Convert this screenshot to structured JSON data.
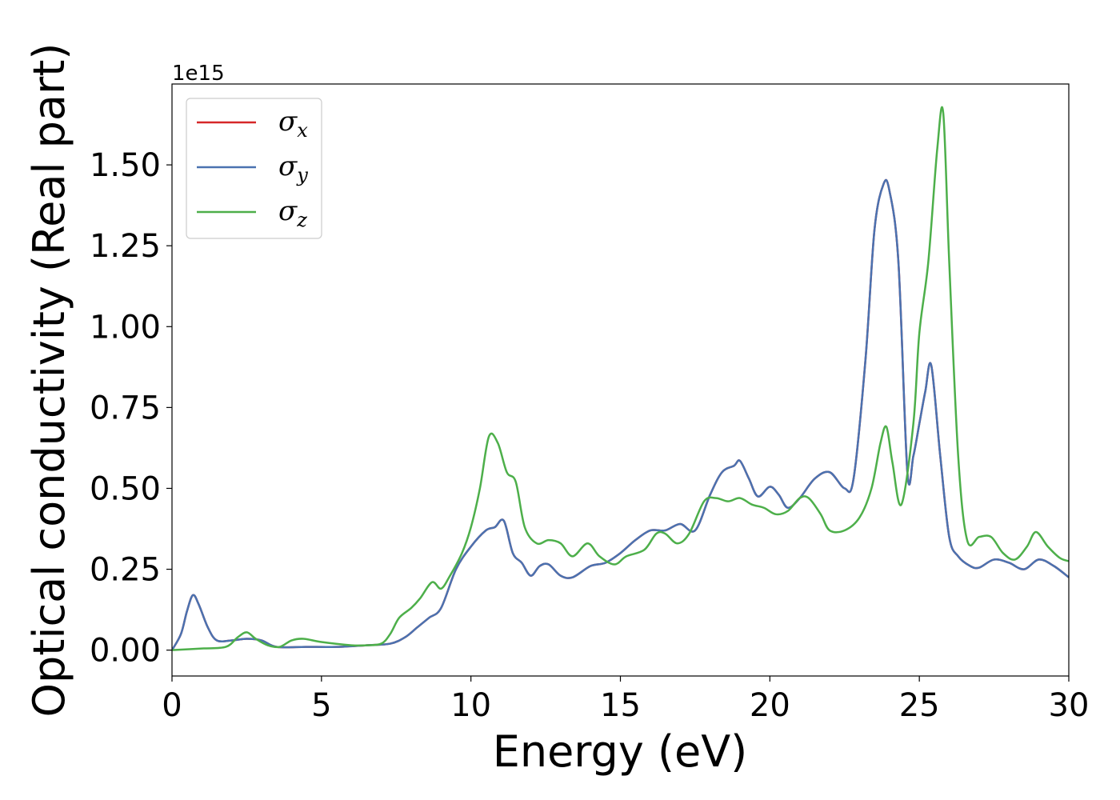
{
  "chart_data": {
    "type": "line",
    "xlabel": "Energy (eV)",
    "ylabel": "Optical conductivity (Real part)",
    "y_offset_text": "1e15",
    "xlim": [
      0,
      30
    ],
    "ylim": [
      -0.08,
      1.75
    ],
    "x_ticks": [
      0,
      5,
      10,
      15,
      20,
      25,
      30
    ],
    "x_tick_labels": [
      "0",
      "5",
      "10",
      "15",
      "20",
      "25",
      "30"
    ],
    "y_ticks": [
      0.0,
      0.25,
      0.5,
      0.75,
      1.0,
      1.25,
      1.5
    ],
    "y_tick_labels": [
      "0.00",
      "0.25",
      "0.50",
      "0.75",
      "1.00",
      "1.25",
      "1.50"
    ],
    "grid": false,
    "legend_position": "top-left",
    "series": [
      {
        "name": "σx",
        "legend_base": "σ",
        "legend_sub": "x",
        "color": "#d62728",
        "x": [
          0,
          0.3,
          0.5,
          0.7,
          0.9,
          1.2,
          1.5,
          2.0,
          2.5,
          3.0,
          3.5,
          4.5,
          5.5,
          6.5,
          7.3,
          7.8,
          8.2,
          8.6,
          9.0,
          9.5,
          10.0,
          10.5,
          10.8,
          11.1,
          11.4,
          11.7,
          12.0,
          12.3,
          12.6,
          13.0,
          13.4,
          14.0,
          14.5,
          15.0,
          15.5,
          16.0,
          16.5,
          17.0,
          17.5,
          18.0,
          18.4,
          18.8,
          19.0,
          19.3,
          19.6,
          20.0,
          20.3,
          20.6,
          21.0,
          21.5,
          22.0,
          22.5,
          22.8,
          23.2,
          23.5,
          23.8,
          24.0,
          24.3,
          24.6,
          24.8,
          25.0,
          25.2,
          25.4,
          25.7,
          26.0,
          26.3,
          26.7,
          27.0,
          27.5,
          28.0,
          28.5,
          29.0,
          29.5,
          30.0
        ],
        "y": [
          0.0,
          0.05,
          0.12,
          0.17,
          0.14,
          0.07,
          0.03,
          0.03,
          0.035,
          0.03,
          0.01,
          0.01,
          0.01,
          0.015,
          0.02,
          0.04,
          0.07,
          0.1,
          0.13,
          0.25,
          0.32,
          0.37,
          0.38,
          0.4,
          0.3,
          0.27,
          0.23,
          0.26,
          0.265,
          0.23,
          0.225,
          0.26,
          0.27,
          0.3,
          0.34,
          0.37,
          0.37,
          0.39,
          0.37,
          0.48,
          0.55,
          0.57,
          0.585,
          0.53,
          0.475,
          0.505,
          0.48,
          0.44,
          0.47,
          0.53,
          0.55,
          0.5,
          0.53,
          0.9,
          1.3,
          1.44,
          1.42,
          1.2,
          0.55,
          0.6,
          0.7,
          0.8,
          0.88,
          0.6,
          0.35,
          0.29,
          0.26,
          0.255,
          0.28,
          0.27,
          0.25,
          0.28,
          0.26,
          0.225
        ]
      },
      {
        "name": "σy",
        "legend_base": "σ",
        "legend_sub": "y",
        "color": "#4a72b0",
        "x": [
          0,
          0.3,
          0.5,
          0.7,
          0.9,
          1.2,
          1.5,
          2.0,
          2.5,
          3.0,
          3.5,
          4.5,
          5.5,
          6.5,
          7.3,
          7.8,
          8.2,
          8.6,
          9.0,
          9.5,
          10.0,
          10.5,
          10.8,
          11.1,
          11.4,
          11.7,
          12.0,
          12.3,
          12.6,
          13.0,
          13.4,
          14.0,
          14.5,
          15.0,
          15.5,
          16.0,
          16.5,
          17.0,
          17.5,
          18.0,
          18.4,
          18.8,
          19.0,
          19.3,
          19.6,
          20.0,
          20.3,
          20.6,
          21.0,
          21.5,
          22.0,
          22.5,
          22.8,
          23.2,
          23.5,
          23.8,
          24.0,
          24.3,
          24.6,
          24.8,
          25.0,
          25.2,
          25.4,
          25.7,
          26.0,
          26.3,
          26.7,
          27.0,
          27.5,
          28.0,
          28.5,
          29.0,
          29.5,
          30.0
        ],
        "y": [
          0.0,
          0.05,
          0.12,
          0.17,
          0.14,
          0.07,
          0.03,
          0.03,
          0.035,
          0.03,
          0.01,
          0.01,
          0.01,
          0.015,
          0.02,
          0.04,
          0.07,
          0.1,
          0.13,
          0.25,
          0.32,
          0.37,
          0.38,
          0.4,
          0.3,
          0.27,
          0.23,
          0.26,
          0.265,
          0.23,
          0.225,
          0.26,
          0.27,
          0.3,
          0.34,
          0.37,
          0.37,
          0.39,
          0.37,
          0.48,
          0.55,
          0.57,
          0.585,
          0.53,
          0.475,
          0.505,
          0.48,
          0.44,
          0.47,
          0.53,
          0.55,
          0.5,
          0.53,
          0.9,
          1.3,
          1.44,
          1.42,
          1.2,
          0.55,
          0.6,
          0.7,
          0.8,
          0.88,
          0.6,
          0.35,
          0.29,
          0.26,
          0.255,
          0.28,
          0.27,
          0.25,
          0.28,
          0.26,
          0.225
        ]
      },
      {
        "name": "σz",
        "legend_base": "σ",
        "legend_sub": "z",
        "color": "#4daf4a",
        "x": [
          0,
          1.0,
          1.8,
          2.2,
          2.5,
          2.8,
          3.2,
          3.6,
          4.0,
          4.4,
          5.0,
          6.0,
          6.5,
          7.0,
          7.3,
          7.6,
          8.0,
          8.3,
          8.7,
          9.0,
          9.3,
          9.7,
          10.0,
          10.3,
          10.6,
          10.9,
          11.2,
          11.5,
          11.8,
          12.2,
          12.6,
          13.0,
          13.4,
          13.9,
          14.3,
          14.8,
          15.2,
          15.8,
          16.2,
          16.5,
          16.9,
          17.3,
          17.8,
          18.2,
          18.6,
          19.0,
          19.4,
          19.8,
          20.2,
          20.6,
          21.0,
          21.3,
          21.7,
          22.0,
          22.5,
          23.0,
          23.4,
          23.7,
          23.9,
          24.1,
          24.4,
          24.8,
          25.0,
          25.3,
          25.6,
          25.8,
          26.0,
          26.3,
          26.6,
          27.0,
          27.4,
          27.8,
          28.2,
          28.6,
          28.9,
          29.3,
          29.7,
          30.0
        ],
        "y": [
          0.0,
          0.005,
          0.01,
          0.04,
          0.055,
          0.035,
          0.015,
          0.01,
          0.03,
          0.035,
          0.025,
          0.015,
          0.015,
          0.02,
          0.05,
          0.1,
          0.13,
          0.16,
          0.21,
          0.19,
          0.23,
          0.3,
          0.38,
          0.5,
          0.66,
          0.64,
          0.55,
          0.52,
          0.38,
          0.33,
          0.34,
          0.33,
          0.29,
          0.33,
          0.29,
          0.265,
          0.29,
          0.31,
          0.36,
          0.36,
          0.33,
          0.36,
          0.46,
          0.47,
          0.46,
          0.47,
          0.45,
          0.44,
          0.42,
          0.43,
          0.47,
          0.47,
          0.42,
          0.37,
          0.37,
          0.41,
          0.5,
          0.64,
          0.69,
          0.58,
          0.45,
          0.7,
          0.98,
          1.2,
          1.55,
          1.66,
          1.2,
          0.6,
          0.34,
          0.35,
          0.35,
          0.3,
          0.28,
          0.32,
          0.365,
          0.32,
          0.285,
          0.275
        ]
      }
    ]
  }
}
